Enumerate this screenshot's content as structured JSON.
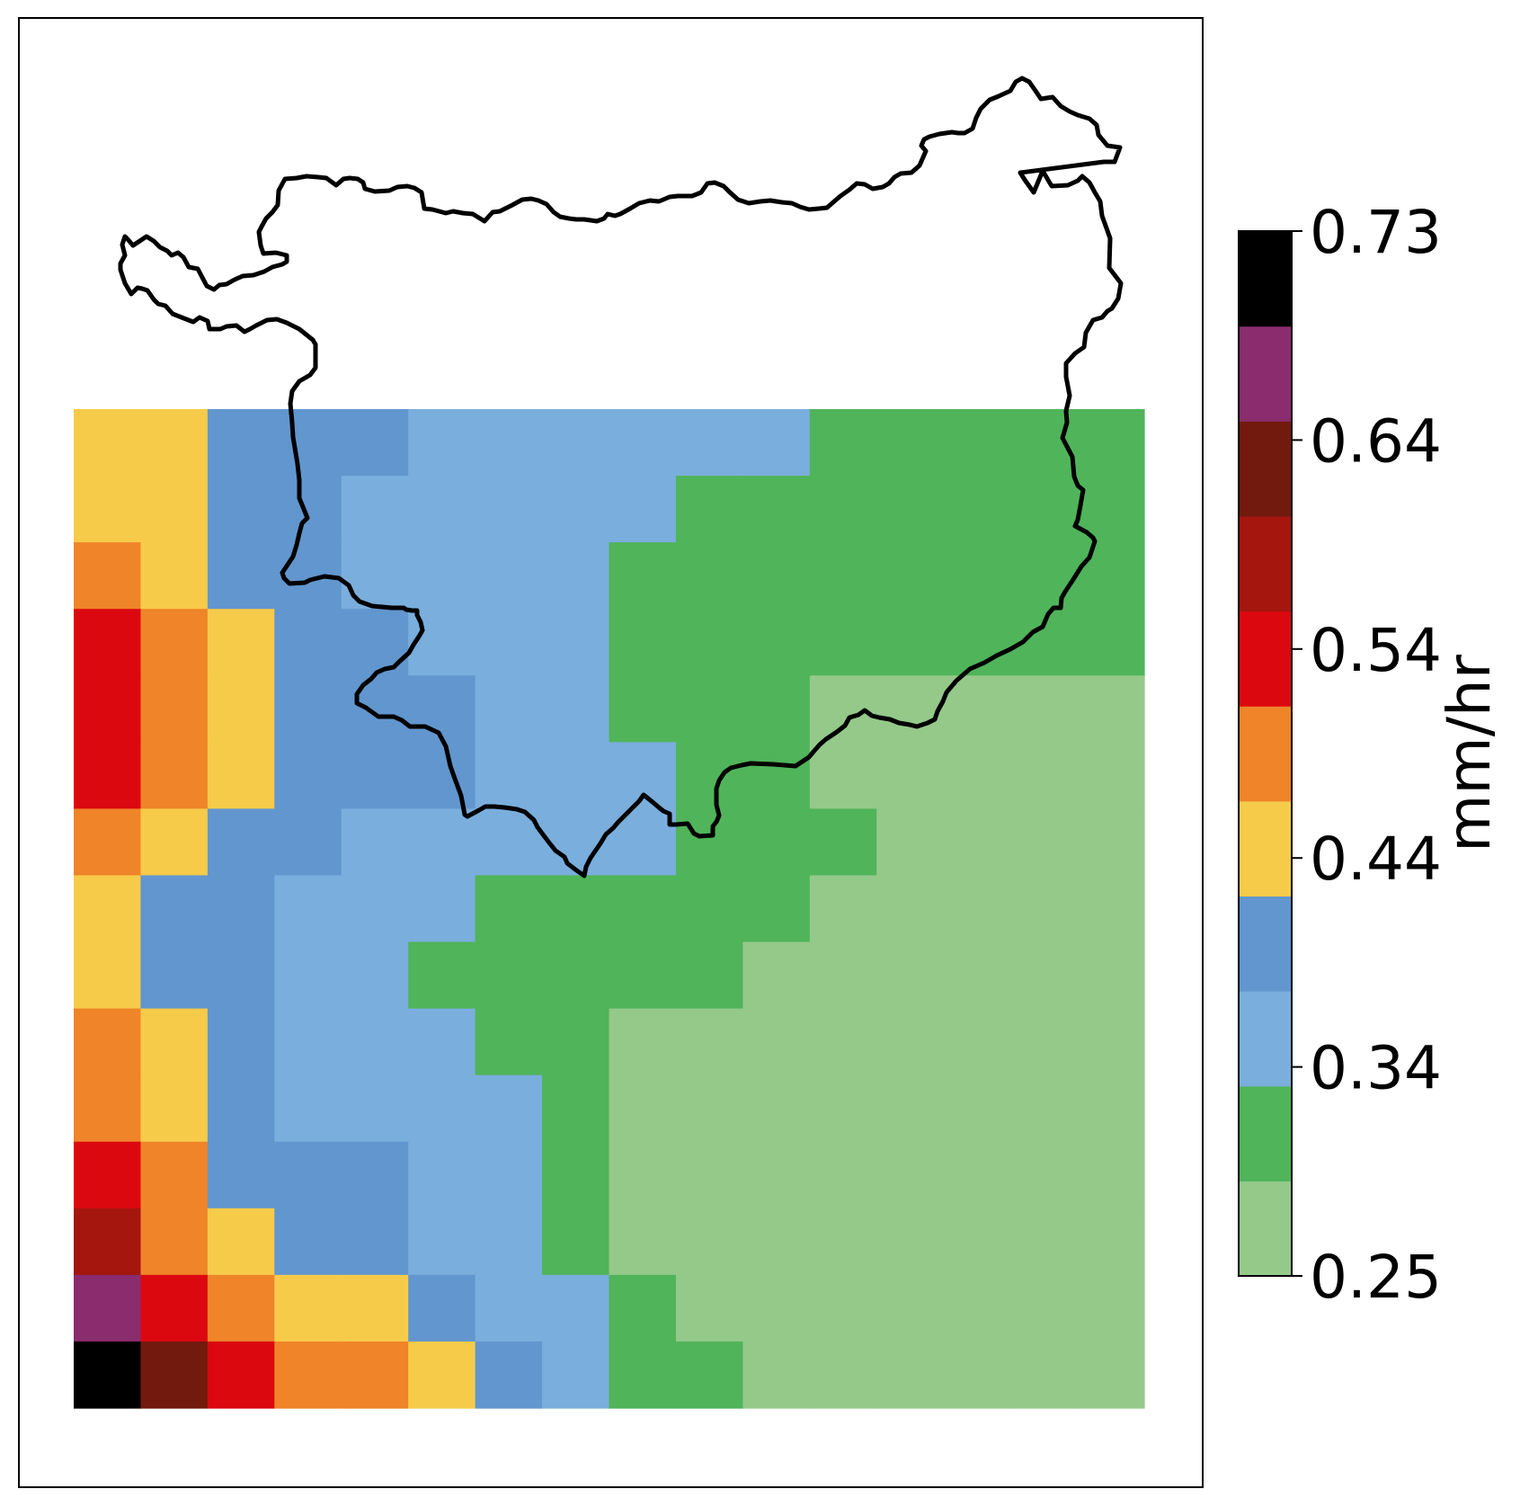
{
  "map": {
    "grid_columns": 16,
    "grid_rows": 15,
    "bin_colors": [
      "#94c98a",
      "#50b45a",
      "#7aaedc",
      "#6296ce",
      "#f6cb4a",
      "#ef8429",
      "#dc0810",
      "#a5160e",
      "#711a0d",
      "#8a2c6d",
      "#000000"
    ],
    "grid_bins": [
      [
        4,
        4,
        3,
        3,
        3,
        2,
        2,
        2,
        2,
        2,
        2,
        1,
        1,
        1,
        1,
        1
      ],
      [
        4,
        4,
        3,
        3,
        2,
        2,
        2,
        2,
        2,
        1,
        1,
        1,
        1,
        1,
        1,
        1
      ],
      [
        5,
        4,
        3,
        3,
        2,
        2,
        2,
        2,
        1,
        1,
        1,
        1,
        1,
        1,
        1,
        1
      ],
      [
        6,
        5,
        4,
        3,
        3,
        2,
        2,
        2,
        1,
        1,
        1,
        1,
        1,
        1,
        1,
        1
      ],
      [
        6,
        5,
        4,
        3,
        3,
        3,
        2,
        2,
        1,
        1,
        1,
        0,
        0,
        0,
        0,
        0
      ],
      [
        6,
        5,
        4,
        3,
        3,
        3,
        2,
        2,
        2,
        1,
        1,
        0,
        0,
        0,
        0,
        0
      ],
      [
        5,
        4,
        3,
        3,
        2,
        2,
        2,
        2,
        2,
        1,
        1,
        1,
        0,
        0,
        0,
        0
      ],
      [
        4,
        3,
        3,
        2,
        2,
        2,
        1,
        1,
        1,
        1,
        1,
        0,
        0,
        0,
        0,
        0
      ],
      [
        4,
        3,
        3,
        2,
        2,
        1,
        1,
        1,
        1,
        1,
        0,
        0,
        0,
        0,
        0,
        0
      ],
      [
        5,
        4,
        3,
        2,
        2,
        2,
        1,
        1,
        0,
        0,
        0,
        0,
        0,
        0,
        0,
        0
      ],
      [
        5,
        4,
        3,
        2,
        2,
        2,
        2,
        1,
        0,
        0,
        0,
        0,
        0,
        0,
        0,
        0
      ],
      [
        6,
        5,
        3,
        3,
        3,
        2,
        2,
        1,
        0,
        0,
        0,
        0,
        0,
        0,
        0,
        0
      ],
      [
        7,
        5,
        4,
        3,
        3,
        2,
        2,
        1,
        0,
        0,
        0,
        0,
        0,
        0,
        0,
        0
      ],
      [
        9,
        6,
        5,
        4,
        4,
        3,
        2,
        2,
        1,
        0,
        0,
        0,
        0,
        0,
        0,
        0
      ],
      [
        10,
        8,
        6,
        5,
        5,
        4,
        3,
        2,
        1,
        1,
        0,
        0,
        0,
        0,
        0,
        0
      ]
    ],
    "region_outline": "lon/lat boundary (black)"
  },
  "colorbar": {
    "ticks": [
      "0.73",
      "0.64",
      "0.54",
      "0.44",
      "0.34",
      "0.25"
    ],
    "vmin": 0.25,
    "vmax": 0.73,
    "label": "mm/hr"
  }
}
